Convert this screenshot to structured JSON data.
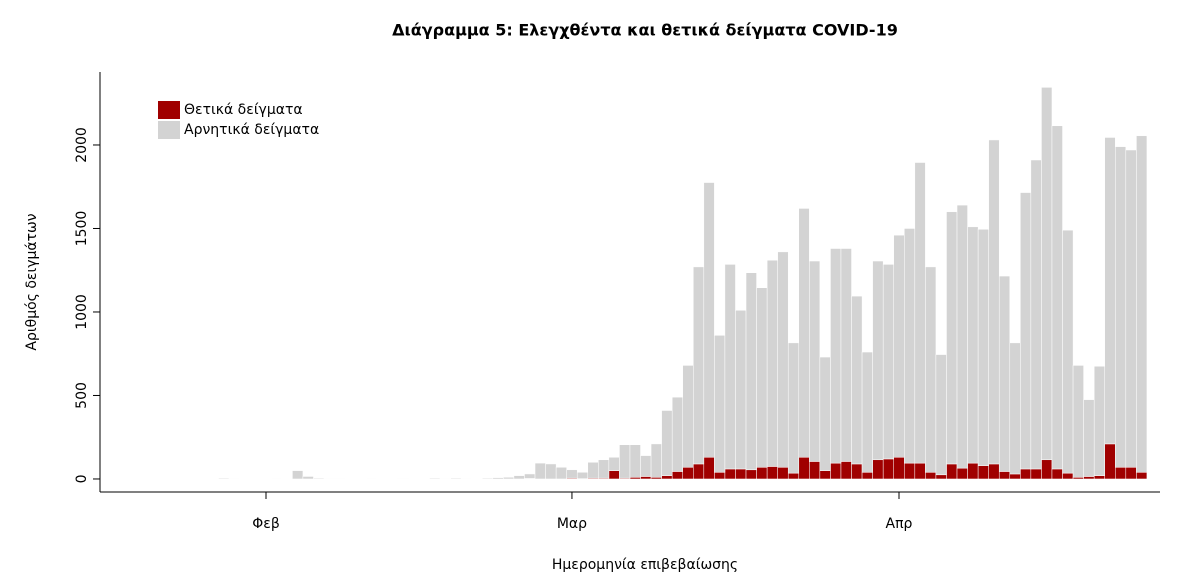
{
  "chart_data": {
    "type": "stacked-bar",
    "title": "Διάγραμμα 5: Ελεγχθέντα και θετικά δείγματα COVID-19",
    "x_label": "Ημερομηνία επιβεβαίωσης",
    "y_label": "Αριθμός δειγμάτων",
    "categories": [
      null,
      null,
      null,
      null,
      null,
      null,
      "Φεβ",
      null,
      null,
      null,
      null,
      null,
      null,
      null,
      null,
      null,
      null,
      null,
      null,
      null,
      null,
      null,
      null,
      null,
      null,
      null,
      null,
      null,
      null,
      null,
      null,
      null,
      null,
      null,
      null,
      "Μαρ",
      null,
      null,
      null,
      null,
      null,
      null,
      null,
      null,
      null,
      null,
      null,
      null,
      null,
      null,
      null,
      null,
      null,
      null,
      null,
      null,
      null,
      null,
      null,
      null,
      null,
      null,
      null,
      null,
      null,
      null,
      "Απρ",
      null,
      null,
      null,
      null,
      null,
      null,
      null,
      null,
      null,
      null,
      null,
      null,
      null,
      null,
      null,
      null,
      null,
      null,
      null,
      null,
      null,
      null,
      null
    ],
    "series": [
      {
        "name": "Θετικά δείγματα",
        "color": "#a00000",
        "values": [
          0,
          0,
          0,
          0,
          0,
          0,
          0,
          0,
          0,
          0,
          0,
          0,
          0,
          0,
          0,
          0,
          0,
          0,
          0,
          0,
          0,
          0,
          0,
          0,
          0,
          0,
          0,
          0,
          0,
          0,
          0,
          3,
          0,
          0,
          0,
          5,
          2,
          5,
          5,
          50,
          5,
          10,
          15,
          10,
          20,
          45,
          70,
          90,
          130,
          40,
          60,
          60,
          55,
          70,
          75,
          70,
          35,
          130,
          105,
          50,
          95,
          105,
          90,
          40,
          115,
          120,
          130,
          95,
          95,
          40,
          25,
          90,
          65,
          95,
          80,
          90,
          45,
          30,
          60,
          60,
          115,
          60,
          35,
          10,
          15,
          20,
          210,
          70,
          70,
          40
        ]
      },
      {
        "name": "Αρνητικά δείγματα",
        "color": "#d3d3d3",
        "values": [
          0,
          0,
          5,
          3,
          2,
          0,
          2,
          3,
          0,
          50,
          15,
          5,
          3,
          3,
          2,
          2,
          3,
          2,
          2,
          3,
          2,
          0,
          5,
          3,
          5,
          3,
          2,
          5,
          8,
          10,
          20,
          27,
          95,
          90,
          70,
          50,
          38,
          95,
          110,
          80,
          200,
          195,
          125,
          200,
          390,
          445,
          610,
          1180,
          1645,
          820,
          1225,
          950,
          1180,
          1075,
          1235,
          1290,
          780,
          1490,
          1200,
          680,
          1285,
          1275,
          1005,
          720,
          1190,
          1165,
          1330,
          1405,
          1800,
          1230,
          720,
          1510,
          1575,
          1415,
          1415,
          1940,
          1170,
          785,
          1655,
          1850,
          2230,
          2055,
          1455,
          670,
          460,
          655,
          1835,
          1920,
          1900,
          2015
        ]
      }
    ],
    "ylim": [
      -78,
      2437
    ],
    "yticks": [
      0,
      500,
      1000,
      1500,
      2000
    ],
    "grid": false,
    "legend": "top-left"
  }
}
